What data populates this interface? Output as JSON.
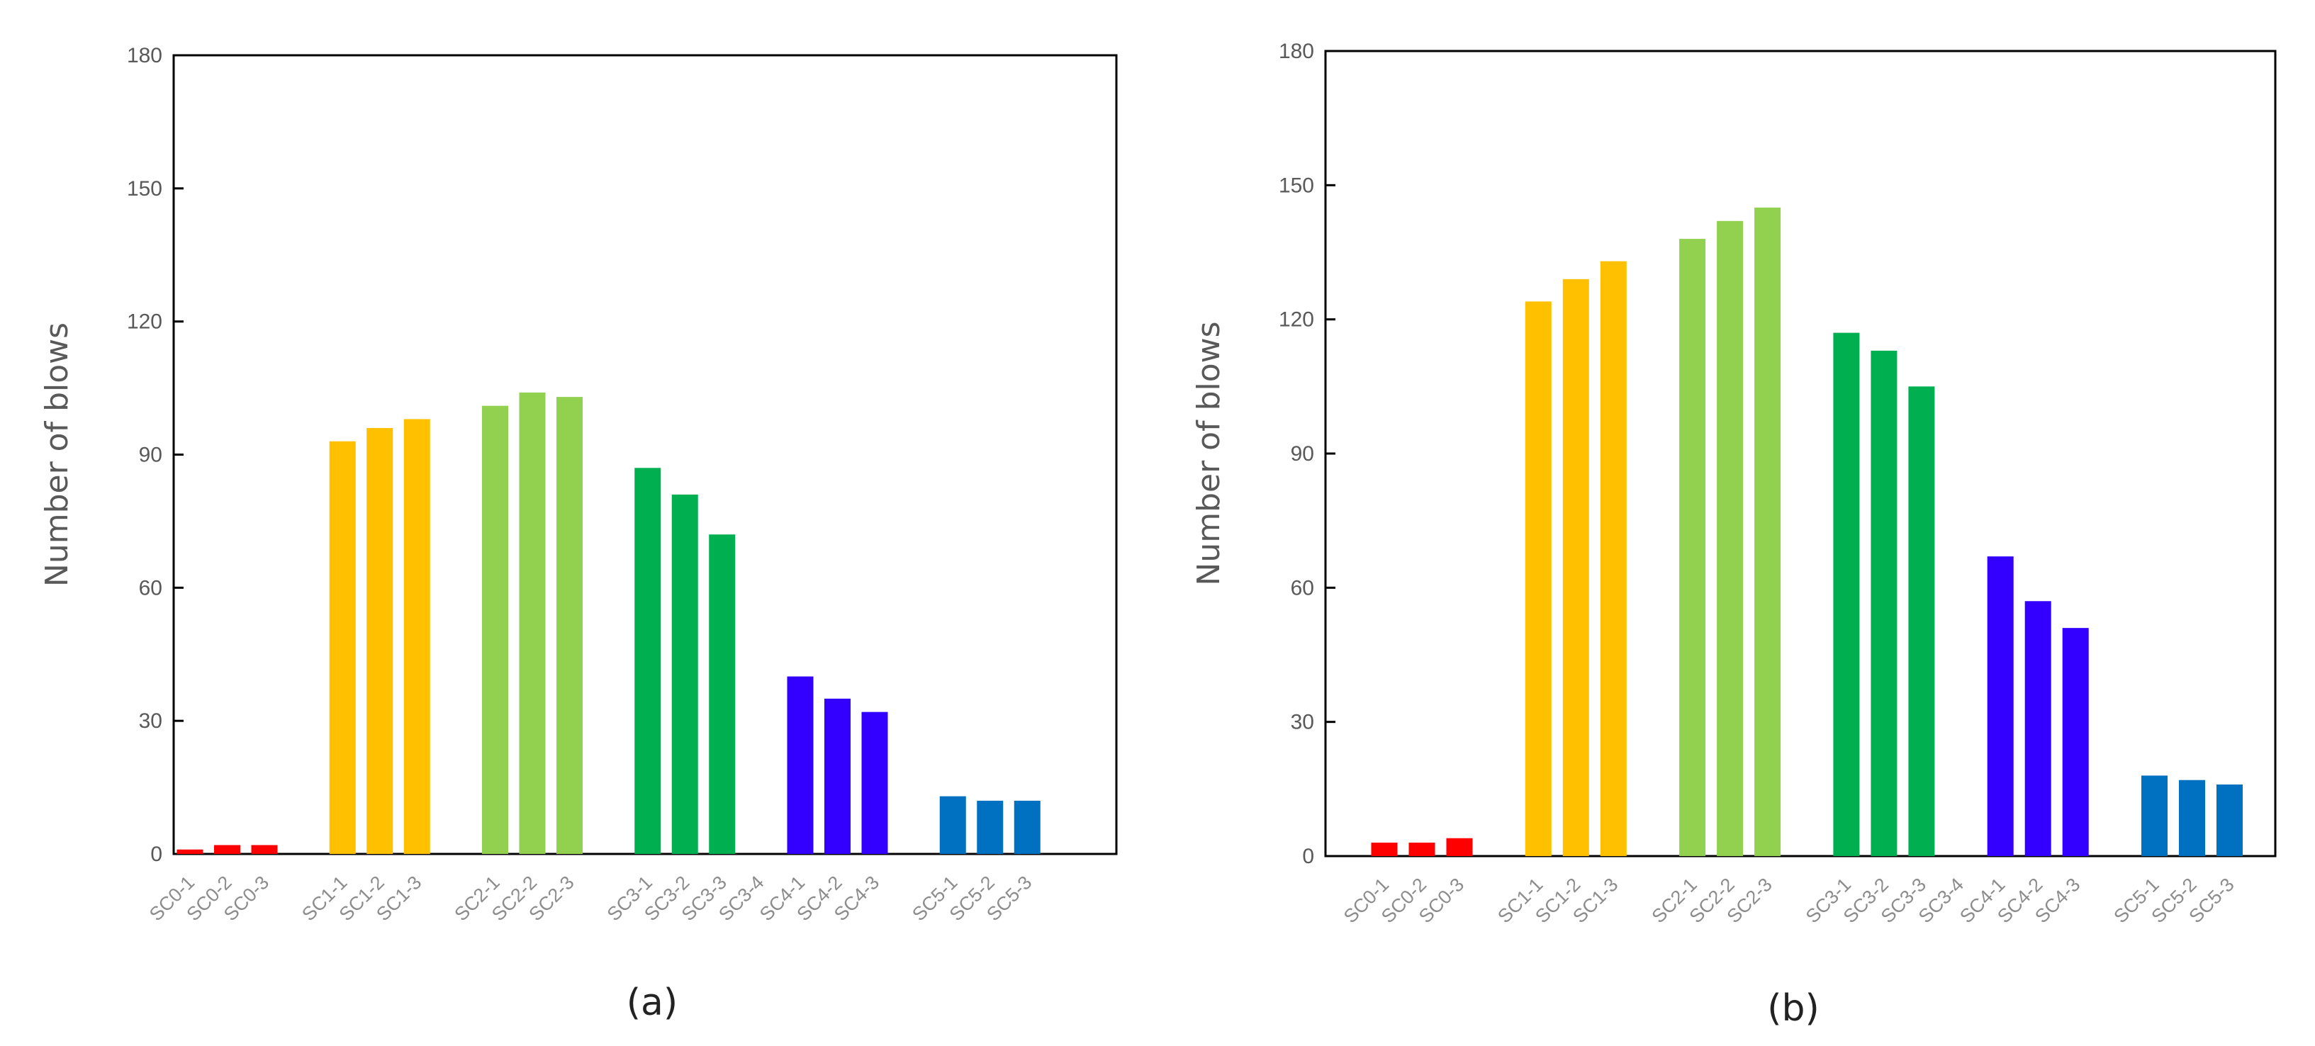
{
  "chart_data": [
    {
      "type": "bar",
      "panel_label": "(a)",
      "ylabel": "Number of blows",
      "xlabel": "",
      "ylim": [
        0,
        180
      ],
      "yticks": [
        "0",
        "30",
        "60",
        "90",
        "120",
        "150",
        "180"
      ],
      "groups": [
        {
          "color": "#ff0000",
          "categories": [
            "SC0-1",
            "SC0-2",
            "SC0-3"
          ],
          "values": [
            1,
            2,
            2
          ]
        },
        {
          "color": "#ffc000",
          "categories": [
            "SC1-1",
            "SC1-2",
            "SC1-3"
          ],
          "values": [
            93,
            96,
            98
          ]
        },
        {
          "color": "#92d050",
          "categories": [
            "SC2-1",
            "SC2-2",
            "SC2-3"
          ],
          "values": [
            101,
            104,
            103
          ]
        },
        {
          "color": "#00b050",
          "categories": [
            "SC3-1",
            "SC3-2",
            "SC3-3",
            "SC3-4"
          ],
          "values": [
            87,
            81,
            72,
            null
          ]
        },
        {
          "color": "#3300ff",
          "categories": [
            "SC4-1",
            "SC4-2",
            "SC4-3"
          ],
          "values": [
            40,
            35,
            32
          ]
        },
        {
          "color": "#0070c0",
          "categories": [
            "SC5-1",
            "SC5-2",
            "SC5-3"
          ],
          "values": [
            13,
            12,
            12
          ]
        }
      ]
    },
    {
      "type": "bar",
      "panel_label": "(b)",
      "ylabel": "Number of blows",
      "xlabel": "",
      "ylim": [
        0,
        180
      ],
      "yticks": [
        "0",
        "30",
        "60",
        "90",
        "120",
        "150",
        "180"
      ],
      "groups": [
        {
          "color": "#ff0000",
          "categories": [
            "SC0-1",
            "SC0-2",
            "SC0-3"
          ],
          "values": [
            3,
            3,
            4
          ]
        },
        {
          "color": "#ffc000",
          "categories": [
            "SC1-1",
            "SC1-2",
            "SC1-3"
          ],
          "values": [
            124,
            129,
            133
          ]
        },
        {
          "color": "#92d050",
          "categories": [
            "SC2-1",
            "SC2-2",
            "SC2-3"
          ],
          "values": [
            138,
            142,
            145
          ]
        },
        {
          "color": "#00b050",
          "categories": [
            "SC3-1",
            "SC3-2",
            "SC3-3",
            "SC3-4"
          ],
          "values": [
            117,
            113,
            105,
            null
          ]
        },
        {
          "color": "#3300ff",
          "categories": [
            "SC4-1",
            "SC4-2",
            "SC4-3"
          ],
          "values": [
            67,
            57,
            51
          ]
        },
        {
          "color": "#0070c0",
          "categories": [
            "SC5-1",
            "SC5-2",
            "SC5-3"
          ],
          "values": [
            18,
            17,
            16
          ]
        }
      ]
    }
  ]
}
